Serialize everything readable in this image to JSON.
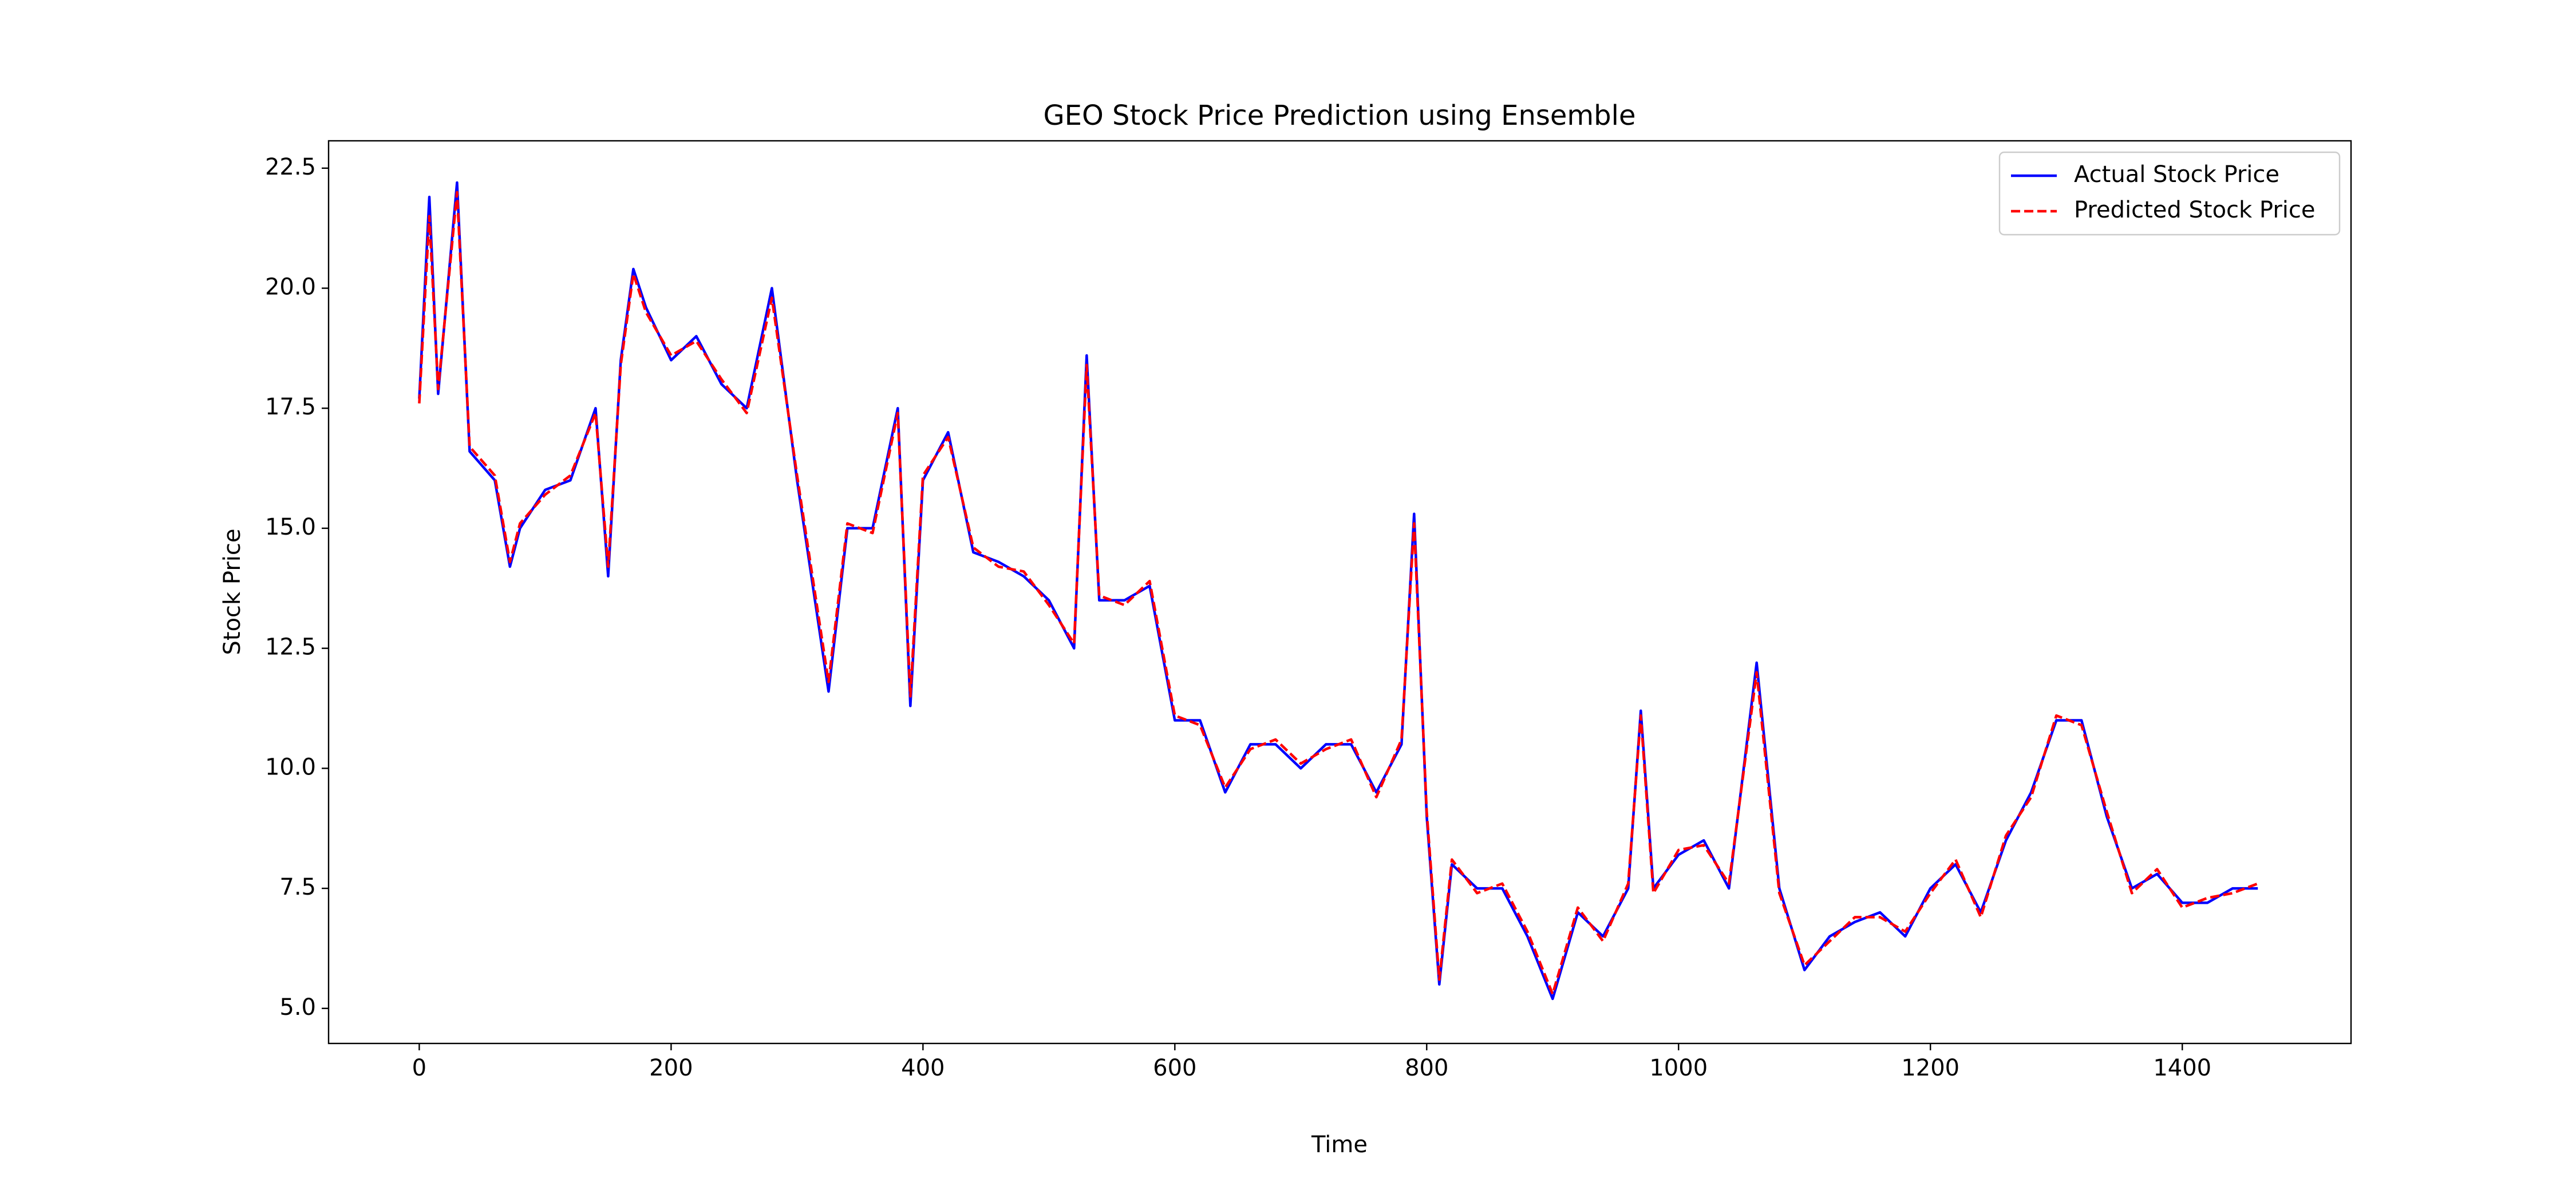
{
  "chart_data": {
    "type": "line",
    "title": "GEO Stock Price Prediction using Ensemble",
    "x_label": "Time",
    "y_label": "Stock Price",
    "x": [
      0,
      8,
      15,
      30,
      40,
      60,
      72,
      80,
      100,
      120,
      140,
      150,
      160,
      170,
      180,
      200,
      220,
      240,
      260,
      280,
      300,
      325,
      340,
      360,
      380,
      390,
      400,
      420,
      440,
      460,
      480,
      500,
      520,
      530,
      540,
      560,
      580,
      600,
      620,
      640,
      660,
      680,
      700,
      720,
      740,
      760,
      780,
      790,
      800,
      810,
      820,
      840,
      860,
      880,
      900,
      920,
      940,
      960,
      970,
      980,
      1000,
      1020,
      1040,
      1062,
      1080,
      1100,
      1120,
      1140,
      1160,
      1180,
      1200,
      1220,
      1240,
      1260,
      1280,
      1300,
      1320,
      1340,
      1360,
      1380,
      1400,
      1420,
      1440,
      1460
    ],
    "series": [
      {
        "name": "Actual Stock Price",
        "color": "#0000ff",
        "linestyle": "solid",
        "values": [
          17.7,
          21.9,
          17.8,
          22.2,
          16.6,
          16,
          14.2,
          15,
          15.8,
          16,
          17.5,
          14,
          18.5,
          20.4,
          19.6,
          18.5,
          19,
          18,
          17.5,
          20,
          16,
          11.6,
          15,
          15,
          17.5,
          11.3,
          16,
          17,
          14.5,
          14.3,
          14,
          13.5,
          12.5,
          18.6,
          13.5,
          13.5,
          13.8,
          11,
          11,
          9.5,
          10.5,
          10.5,
          10,
          10.5,
          10.5,
          9.5,
          10.5,
          15.3,
          9,
          5.5,
          8,
          7.5,
          7.5,
          6.5,
          5.2,
          7,
          6.5,
          7.5,
          11.2,
          7.5,
          8.2,
          8.5,
          7.5,
          12.2,
          7.5,
          5.8,
          6.5,
          6.8,
          7,
          6.5,
          7.5,
          8,
          7,
          8.5,
          9.5,
          11,
          11,
          9,
          7.5,
          7.8,
          7.2,
          7.2,
          7.5,
          7.5
        ]
      },
      {
        "name": "Predicted Stock Price",
        "color": "#ff0000",
        "linestyle": "dashed",
        "values": [
          17.6,
          21.5,
          17.9,
          22.0,
          16.7,
          16.1,
          14.3,
          15.1,
          15.7,
          16.1,
          17.4,
          14.2,
          18.4,
          20.3,
          19.5,
          18.6,
          18.9,
          18.1,
          17.4,
          19.8,
          16.1,
          11.8,
          15.1,
          14.9,
          17.4,
          11.5,
          16.1,
          16.9,
          14.6,
          14.2,
          14.1,
          13.4,
          12.6,
          18.4,
          13.6,
          13.4,
          13.9,
          11.1,
          10.9,
          9.6,
          10.4,
          10.6,
          10.1,
          10.4,
          10.6,
          9.4,
          10.6,
          15.1,
          9.1,
          5.6,
          8.1,
          7.4,
          7.6,
          6.6,
          5.3,
          7.1,
          6.4,
          7.6,
          11.1,
          7.4,
          8.3,
          8.4,
          7.6,
          12.0,
          7.4,
          5.9,
          6.4,
          6.9,
          6.9,
          6.6,
          7.4,
          8.1,
          6.9,
          8.6,
          9.4,
          11.1,
          10.9,
          9.1,
          7.4,
          7.9,
          7.1,
          7.3,
          7.4,
          7.6
        ]
      }
    ],
    "xlim": [
      -72,
      1534
    ],
    "ylim": [
      4.27,
      23.07
    ],
    "xticks": [
      0,
      200,
      400,
      600,
      800,
      1000,
      1200,
      1400
    ],
    "yticks": [
      {
        "value": 5,
        "label": "5.0"
      },
      7.5,
      {
        "value": 10,
        "label": "10.0"
      },
      12.5,
      {
        "value": 15,
        "label": "15.0"
      },
      17.5,
      {
        "value": 20,
        "label": "20.0"
      },
      22.5
    ],
    "grid": false,
    "legend": "upper right"
  }
}
